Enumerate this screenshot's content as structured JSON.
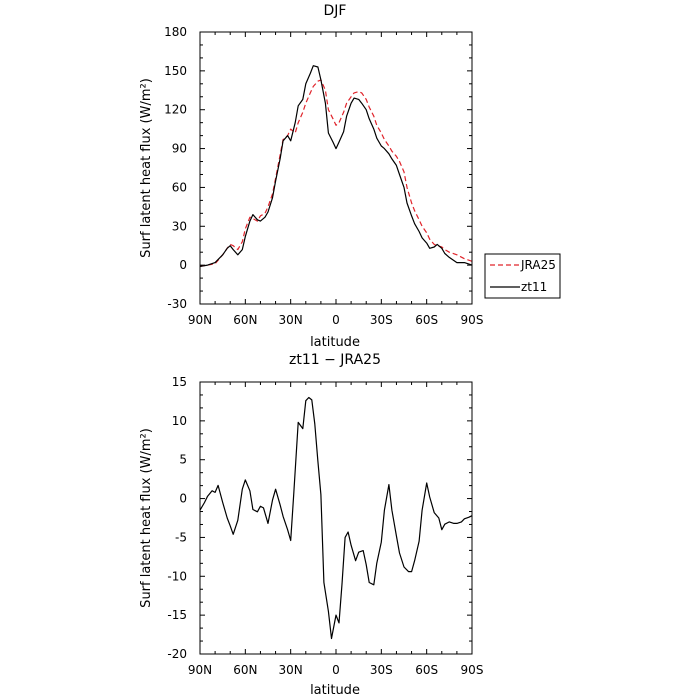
{
  "chart_data": [
    {
      "type": "line",
      "title": "DJF",
      "xlabel": "latitude",
      "ylabel": "Surf latent heat flux (W/m²)",
      "x": [
        90,
        85,
        80,
        75,
        72,
        70,
        68,
        65,
        62,
        60,
        57,
        55,
        52,
        50,
        47,
        45,
        42,
        40,
        37,
        35,
        32,
        30,
        27,
        25,
        22,
        20,
        17,
        15,
        12,
        10,
        7,
        5,
        2,
        0,
        -2,
        -5,
        -7,
        -10,
        -12,
        -15,
        -17,
        -20,
        -22,
        -25,
        -27,
        -30,
        -32,
        -35,
        -37,
        -40,
        -42,
        -45,
        -47,
        -50,
        -52,
        -55,
        -57,
        -60,
        -62,
        -65,
        -67,
        -70,
        -72,
        -75,
        -80,
        -85,
        -90
      ],
      "xlim": [
        90,
        -90
      ],
      "ylim": [
        -30,
        180
      ],
      "xticks": [
        90,
        60,
        30,
        0,
        -30,
        -60,
        -90
      ],
      "xtick_labels": [
        "90N",
        "60N",
        "30N",
        "0",
        "30S",
        "60S",
        "90S"
      ],
      "yticks": [
        -30,
        0,
        30,
        60,
        90,
        120,
        150,
        180
      ],
      "ytick_labels": [
        "-30",
        "0",
        "30",
        "60",
        "90",
        "120",
        "150",
        "180"
      ],
      "series": [
        {
          "name": "JRA25",
          "color": "#e0242b",
          "dash": "dashed",
          "values": [
            -1,
            0,
            1,
            8,
            13,
            16,
            15,
            12,
            18,
            28,
            37,
            36,
            34,
            38,
            40,
            45,
            55,
            67,
            85,
            97,
            100,
            105,
            102,
            110,
            118,
            125,
            133,
            138,
            142,
            143,
            135,
            120,
            113,
            108,
            110,
            118,
            125,
            130,
            133,
            134,
            133,
            128,
            122,
            115,
            108,
            102,
            97,
            92,
            88,
            84,
            80,
            72,
            60,
            48,
            42,
            35,
            30,
            25,
            20,
            16,
            15,
            14,
            12,
            10,
            8,
            5,
            3
          ]
        },
        {
          "name": "zt11",
          "color": "#000000",
          "dash": "solid",
          "values": [
            -1,
            0,
            2,
            8,
            13,
            15,
            12,
            8,
            12,
            22,
            34,
            39,
            35,
            34,
            37,
            41,
            52,
            65,
            82,
            96,
            100,
            96,
            110,
            123,
            128,
            140,
            148,
            154,
            153,
            143,
            125,
            102,
            95,
            90,
            95,
            103,
            115,
            125,
            129,
            128,
            125,
            120,
            113,
            105,
            98,
            92,
            90,
            86,
            82,
            77,
            70,
            60,
            48,
            38,
            32,
            26,
            21,
            17,
            13,
            14,
            16,
            13,
            9,
            6,
            2,
            2,
            0
          ]
        }
      ],
      "legend": {
        "placement": "right-bottom",
        "entries": [
          "JRA25",
          "zt11"
        ]
      }
    },
    {
      "type": "line",
      "title": "zt11 − JRA25",
      "xlabel": "latitude",
      "ylabel": "Surf latent heat flux (W/m²)",
      "x": [
        90,
        87,
        85,
        82,
        80,
        78,
        75,
        72,
        70,
        68,
        65,
        62,
        60,
        57,
        55,
        52,
        50,
        48,
        45,
        42,
        40,
        37,
        35,
        32,
        30,
        28,
        25,
        22,
        20,
        18,
        16,
        14,
        12,
        10,
        8,
        5,
        3,
        0,
        -2,
        -4,
        -6,
        -8,
        -10,
        -13,
        -15,
        -18,
        -20,
        -22,
        -25,
        -27,
        -30,
        -32,
        -35,
        -37,
        -40,
        -42,
        -45,
        -48,
        -50,
        -52,
        -55,
        -57,
        -60,
        -62,
        -65,
        -68,
        -70,
        -72,
        -75,
        -78,
        -80,
        -83,
        -85,
        -88,
        -90
      ],
      "xlim": [
        90,
        -90
      ],
      "ylim": [
        -20,
        15
      ],
      "xticks": [
        90,
        60,
        30,
        0,
        -30,
        -60,
        -90
      ],
      "xtick_labels": [
        "90N",
        "60N",
        "30N",
        "0",
        "30S",
        "60S",
        "90S"
      ],
      "yticks": [
        -20,
        -15,
        -10,
        -5,
        0,
        5,
        10,
        15
      ],
      "ytick_labels": [
        "-20",
        "-15",
        "-10",
        "-5",
        "0",
        "5",
        "10",
        "15"
      ],
      "series": [
        {
          "color": "#000000",
          "dash": "solid",
          "values": [
            -1.5,
            -0.5,
            0.3,
            1,
            0.8,
            1.7,
            -0.5,
            -2.5,
            -3.5,
            -4.6,
            -2.8,
            1.2,
            2.4,
            1.0,
            -1.4,
            -1.7,
            -1.0,
            -1.2,
            -3.2,
            -0.2,
            1.2,
            -0.8,
            -2.3,
            -4.0,
            -5.4,
            0.5,
            9.8,
            9.0,
            12.6,
            13.0,
            12.7,
            9.6,
            4.8,
            0.5,
            -10.8,
            -14.5,
            -18.0,
            -15.0,
            -16.0,
            -11.0,
            -5.0,
            -4.3,
            -6.0,
            -8.0,
            -6.9,
            -6.7,
            -8.5,
            -10.8,
            -11.1,
            -8.3,
            -5.6,
            -1.5,
            1.8,
            -1.5,
            -4.8,
            -7.0,
            -8.8,
            -9.4,
            -9.4,
            -8.0,
            -5.5,
            -1.5,
            2.0,
            0.2,
            -1.8,
            -2.5,
            -4.0,
            -3.3,
            -3.0,
            -3.2,
            -3.2,
            -3.0,
            -2.6,
            -2.4,
            -2.2
          ]
        }
      ]
    }
  ]
}
